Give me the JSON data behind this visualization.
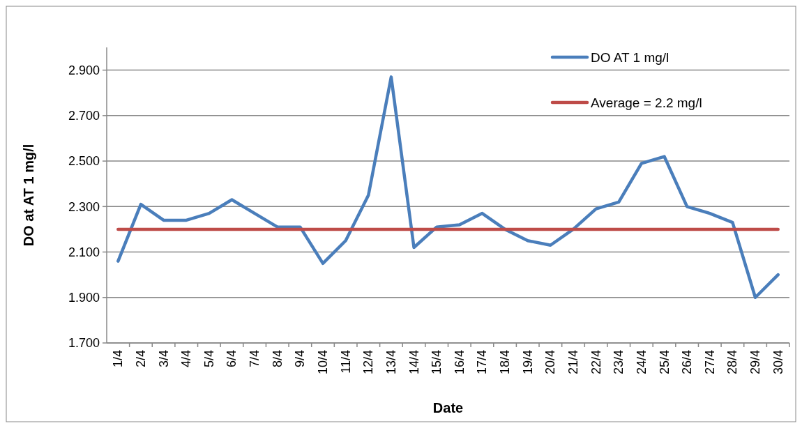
{
  "chart_data": {
    "type": "line",
    "xlabel": "Date",
    "ylabel": "DO at AT 1 mg/l",
    "categories": [
      "1/4",
      "2/4",
      "3/4",
      "4/4",
      "5/4",
      "6/4",
      "7/4",
      "8/4",
      "9/4",
      "10/4",
      "11/4",
      "12/4",
      "13/4",
      "14/4",
      "15/4",
      "16/4",
      "17/4",
      "18/4",
      "19/4",
      "20/4",
      "21/4",
      "22/4",
      "23/4",
      "24/4",
      "25/4",
      "26/4",
      "27/4",
      "28/4",
      "29/4",
      "30/4"
    ],
    "series": [
      {
        "name": "DO AT 1 mg/l",
        "color": "#4a7ebb",
        "values": [
          2.06,
          2.31,
          2.24,
          2.24,
          2.27,
          2.33,
          2.27,
          2.21,
          2.21,
          2.05,
          2.15,
          2.35,
          2.87,
          2.12,
          2.21,
          2.22,
          2.27,
          2.2,
          2.15,
          2.13,
          2.2,
          2.29,
          2.32,
          2.49,
          2.52,
          2.3,
          2.27,
          2.23,
          1.9,
          2.0
        ]
      },
      {
        "name": "Average = 2.2 mg/l",
        "color": "#be4b48",
        "values": [
          2.2,
          2.2,
          2.2,
          2.2,
          2.2,
          2.2,
          2.2,
          2.2,
          2.2,
          2.2,
          2.2,
          2.2,
          2.2,
          2.2,
          2.2,
          2.2,
          2.2,
          2.2,
          2.2,
          2.2,
          2.2,
          2.2,
          2.2,
          2.2,
          2.2,
          2.2,
          2.2,
          2.2,
          2.2,
          2.2
        ]
      }
    ],
    "ylim": [
      1.7,
      3.0
    ],
    "yticks": [
      {
        "value": 1.7,
        "label": "1.700"
      },
      {
        "value": 1.9,
        "label": "1.900"
      },
      {
        "value": 2.1,
        "label": "2.100"
      },
      {
        "value": 2.3,
        "label": "2.300"
      },
      {
        "value": 2.5,
        "label": "2.500"
      },
      {
        "value": 2.7,
        "label": "2.700"
      },
      {
        "value": 2.9,
        "label": "2.900"
      }
    ],
    "grid": "y",
    "legend": "top right",
    "marker": "none",
    "line_style": "solid"
  }
}
